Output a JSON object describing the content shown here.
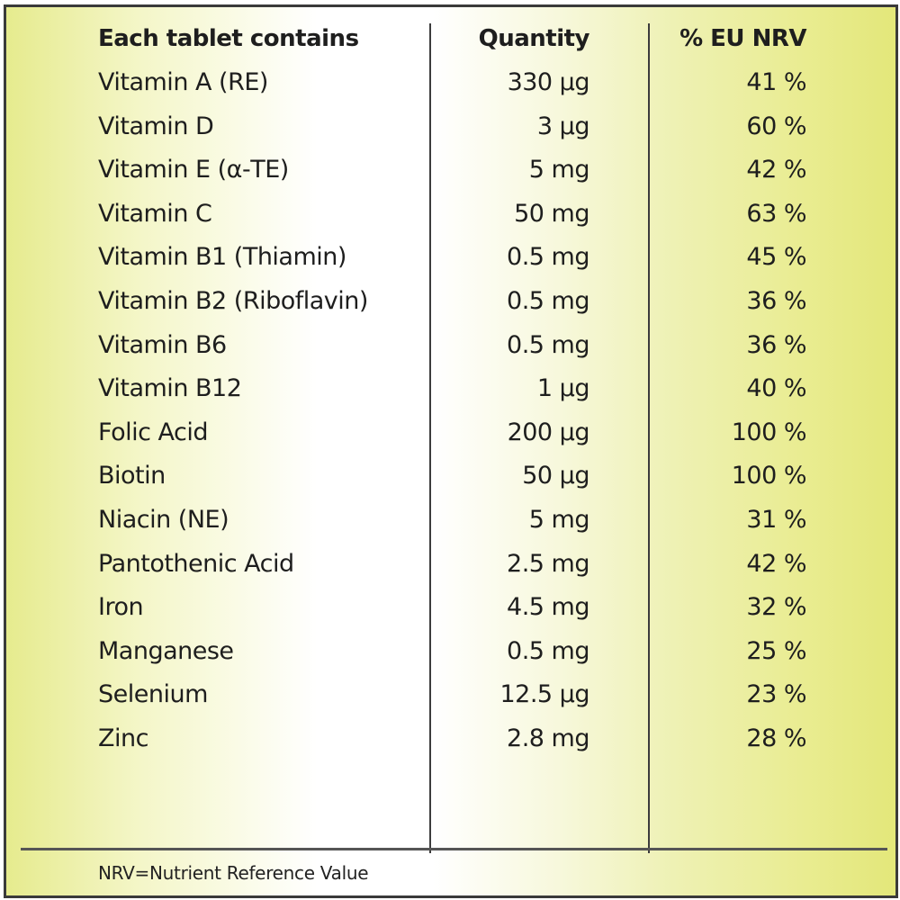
{
  "table": {
    "headers": {
      "name": "Each tablet contains",
      "quantity": "Quantity",
      "nrv": "% EU NRV"
    },
    "rows": [
      {
        "name": "Vitamin A (RE)",
        "quantity": "330 µg",
        "nrv": "41 %"
      },
      {
        "name": "Vitamin D",
        "quantity": "3 µg",
        "nrv": "60 %"
      },
      {
        "name": "Vitamin E (α-TE)",
        "quantity": "5 mg",
        "nrv": "42 %"
      },
      {
        "name": "Vitamin C",
        "quantity": "50 mg",
        "nrv": "63 %"
      },
      {
        "name": "Vitamin B1 (Thiamin)",
        "quantity": "0.5 mg",
        "nrv": "45 %"
      },
      {
        "name": "Vitamin B2 (Riboflavin)",
        "quantity": "0.5 mg",
        "nrv": "36 %"
      },
      {
        "name": "Vitamin B6",
        "quantity": "0.5 mg",
        "nrv": "36 %"
      },
      {
        "name": "Vitamin B12",
        "quantity": "1 µg",
        "nrv": "40 %"
      },
      {
        "name": "Folic Acid",
        "quantity": "200 µg",
        "nrv": "100 %"
      },
      {
        "name": "Biotin",
        "quantity": "50 µg",
        "nrv": "100 %"
      },
      {
        "name": "Niacin (NE)",
        "quantity": "5 mg",
        "nrv": "31 %"
      },
      {
        "name": "Pantothenic Acid",
        "quantity": "2.5 mg",
        "nrv": "42 %"
      },
      {
        "name": "Iron",
        "quantity": "4.5 mg",
        "nrv": "32 %"
      },
      {
        "name": "Manganese",
        "quantity": "0.5 mg",
        "nrv": "25 %"
      },
      {
        "name": "Selenium",
        "quantity": "12.5 µg",
        "nrv": "23 %"
      },
      {
        "name": "Zinc",
        "quantity": "2.8 mg",
        "nrv": "28 %"
      }
    ]
  },
  "footnote": "NRV=Nutrient Reference Value",
  "colors": {
    "border": "#3a3a3a",
    "gradient_edge": "#e3e77a",
    "text": "#1e1e1e"
  }
}
